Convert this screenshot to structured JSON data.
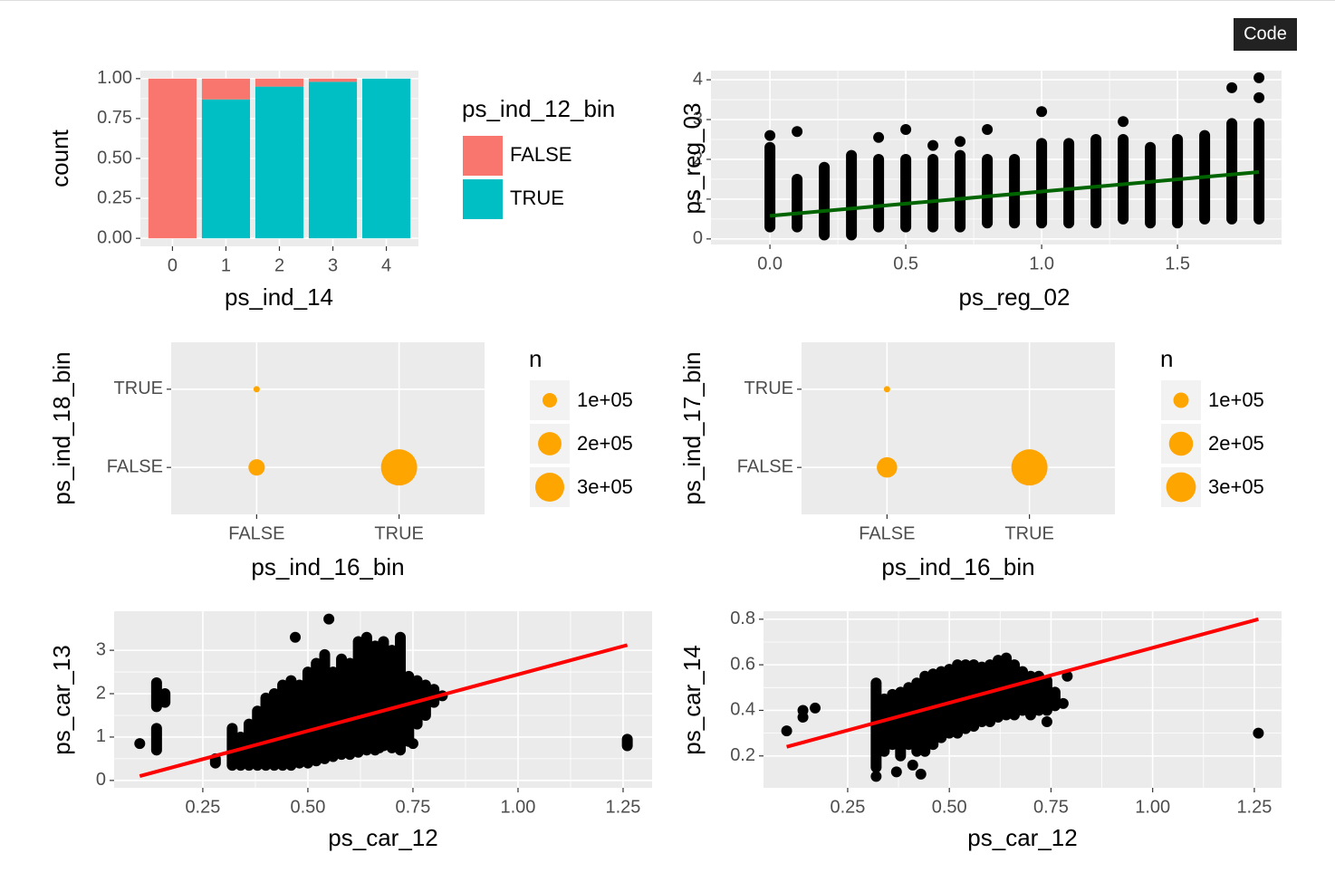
{
  "code_button": "Code",
  "chart_data": [
    {
      "type": "bar",
      "xlabel": "ps_ind_14",
      "ylabel": "count",
      "legend_title": "ps_ind_12_bin",
      "categories": [
        "0",
        "1",
        "2",
        "3",
        "4"
      ],
      "series": [
        {
          "name": "FALSE",
          "color": "#f8766d",
          "values": [
            1.0,
            0.13,
            0.05,
            0.02,
            0.0
          ]
        },
        {
          "name": "TRUE",
          "color": "#00bfc4",
          "values": [
            0.0,
            0.87,
            0.95,
            0.98,
            1.0
          ]
        }
      ],
      "ylim": [
        -0.05,
        1.05
      ],
      "yticks": [
        {
          "value": 0,
          "label": "0.00"
        },
        {
          "value": 0.25,
          "label": "0.25"
        },
        {
          "value": 0.5,
          "label": "0.50"
        },
        {
          "value": 0.75,
          "label": "0.75"
        },
        {
          "value": 1,
          "label": "1.00"
        }
      ],
      "grid": true
    },
    {
      "type": "scatter",
      "xlabel": "ps_reg_02",
      "ylabel": "ps_reg_03",
      "color": "#000000",
      "xlim": [
        -0.217,
        1.883
      ],
      "ylim": [
        -0.14,
        4.23
      ],
      "xticks": [
        {
          "value": 0,
          "label": "0.0"
        },
        0.5,
        {
          "value": 1,
          "label": "1.0"
        },
        1.5
      ],
      "yticks": [
        0,
        1,
        2,
        3,
        4
      ],
      "columns": {
        "x": [
          0,
          0.1,
          0.2,
          0.3,
          0.4,
          0.5,
          0.6,
          0.7,
          0.8,
          0.9,
          1.0,
          1.1,
          1.2,
          1.3,
          1.4,
          1.5,
          1.6,
          1.7,
          1.8
        ],
        "low": [
          0.3,
          0.3,
          0.1,
          0.1,
          0.3,
          0.3,
          0.3,
          0.3,
          0.4,
          0.4,
          0.4,
          0.4,
          0.4,
          0.5,
          0.4,
          0.4,
          0.5,
          0.5,
          0.5
        ],
        "high": [
          2.3,
          1.5,
          1.8,
          2.1,
          2.0,
          2.0,
          2.0,
          2.1,
          2.0,
          2.0,
          2.4,
          2.4,
          2.5,
          2.5,
          2.3,
          2.5,
          2.6,
          2.9,
          2.9
        ]
      },
      "points": {
        "x": [
          0,
          0.1,
          0.4,
          0.5,
          0.6,
          0.7,
          0.8,
          1.0,
          1.3,
          1.7,
          1.8,
          1.8
        ],
        "y": [
          2.6,
          2.7,
          2.55,
          2.75,
          2.35,
          2.45,
          2.75,
          3.2,
          2.95,
          3.8,
          3.55,
          4.05
        ]
      },
      "fit": {
        "color": "#006400",
        "x": [
          0,
          1.8
        ],
        "y": [
          0.58,
          1.68
        ]
      },
      "grid": true
    },
    {
      "type": "bubble",
      "xlabel": "ps_ind_16_bin",
      "ylabel": "ps_ind_18_bin",
      "color": "#ffa500",
      "legend_title": "n",
      "categories": [
        "FALSE",
        "TRUE"
      ],
      "y_categories": [
        "FALSE",
        "TRUE"
      ],
      "points": [
        {
          "x": "FALSE",
          "y": "TRUE",
          "n": 70000
        },
        {
          "x": "FALSE",
          "y": "FALSE",
          "n": 115000
        },
        {
          "x": "TRUE",
          "y": "FALSE",
          "n": 470000
        }
      ],
      "size_legend": [
        {
          "value": 100000,
          "label": "1e+05"
        },
        {
          "value": 200000,
          "label": "2e+05"
        },
        {
          "value": 300000,
          "label": "3e+05"
        }
      ],
      "grid": true
    },
    {
      "type": "bubble",
      "xlabel": "ps_ind_16_bin",
      "ylabel": "ps_ind_17_bin",
      "color": "#ffa500",
      "legend_title": "n",
      "categories": [
        "FALSE",
        "TRUE"
      ],
      "y_categories": [
        "FALSE",
        "TRUE"
      ],
      "points": [
        {
          "x": "FALSE",
          "y": "TRUE",
          "n": 65000
        },
        {
          "x": "FALSE",
          "y": "FALSE",
          "n": 150000
        },
        {
          "x": "TRUE",
          "y": "FALSE",
          "n": 450000
        }
      ],
      "size_legend": [
        {
          "value": 100000,
          "label": "1e+05"
        },
        {
          "value": 200000,
          "label": "2e+05"
        },
        {
          "value": 300000,
          "label": "3e+05"
        }
      ],
      "grid": true
    },
    {
      "type": "scatter",
      "xlabel": "ps_car_12",
      "ylabel": "ps_car_13",
      "color": "#000000",
      "xlim": [
        0.039,
        1.319
      ],
      "ylim": [
        -0.17,
        3.9
      ],
      "xticks": [
        0.25,
        {
          "value": 0.5,
          "label": "0.50"
        },
        0.75,
        {
          "value": 1,
          "label": "1.00"
        },
        1.25
      ],
      "yticks": [
        0,
        1,
        2,
        3
      ],
      "columns": {
        "x": [
          0.14,
          0.14,
          0.16,
          0.28,
          0.32,
          0.34,
          0.36,
          0.38,
          0.4,
          0.42,
          0.44,
          0.46,
          0.48,
          0.5,
          0.52,
          0.54,
          0.56,
          0.58,
          0.6,
          0.62,
          0.64,
          0.66,
          0.68,
          0.7,
          0.72,
          0.74,
          0.76,
          0.78,
          0.8,
          1.26
        ],
        "low": [
          0.7,
          1.7,
          1.8,
          0.4,
          0.35,
          0.35,
          0.35,
          0.35,
          0.35,
          0.35,
          0.35,
          0.35,
          0.4,
          0.4,
          0.45,
          0.5,
          0.55,
          0.6,
          0.6,
          0.65,
          0.7,
          0.7,
          0.8,
          0.75,
          0.7,
          0.9,
          1.3,
          1.5,
          1.8,
          0.8
        ],
        "high": [
          1.2,
          2.25,
          2.0,
          0.5,
          1.2,
          1.0,
          1.3,
          1.6,
          1.9,
          2.0,
          2.2,
          2.3,
          2.2,
          2.5,
          2.7,
          2.9,
          2.5,
          2.8,
          2.7,
          3.2,
          3.3,
          3.1,
          3.2,
          3.0,
          3.3,
          2.4,
          2.3,
          2.2,
          2.1,
          0.95
        ]
      },
      "points": {
        "x": [
          0.1,
          0.55,
          0.47,
          0.71,
          0.67,
          0.75,
          0.82
        ],
        "y": [
          0.85,
          3.72,
          3.3,
          0.8,
          0.75,
          0.85,
          1.95
        ]
      },
      "fit": {
        "color": "#ff0000",
        "x": [
          0.1,
          1.26
        ],
        "y": [
          0.1,
          3.12
        ]
      },
      "grid": true
    },
    {
      "type": "scatter",
      "xlabel": "ps_car_12",
      "ylabel": "ps_car_14",
      "color": "#000000",
      "xlim": [
        0.043,
        1.317
      ],
      "ylim": [
        0.06,
        0.835
      ],
      "xticks": [
        0.25,
        {
          "value": 0.5,
          "label": "0.50"
        },
        0.75,
        {
          "value": 1,
          "label": "1.00"
        },
        1.25
      ],
      "yticks": [
        0.2,
        0.4,
        0.6,
        0.8
      ],
      "columns": {
        "x": [
          0.32,
          0.34,
          0.36,
          0.38,
          0.4,
          0.42,
          0.44,
          0.46,
          0.48,
          0.5,
          0.52,
          0.54,
          0.56,
          0.58,
          0.6,
          0.62,
          0.64,
          0.66,
          0.68,
          0.7,
          0.72,
          0.74,
          0.76
        ],
        "low": [
          0.15,
          0.22,
          0.25,
          0.2,
          0.25,
          0.22,
          0.22,
          0.25,
          0.28,
          0.3,
          0.3,
          0.32,
          0.33,
          0.35,
          0.35,
          0.37,
          0.38,
          0.38,
          0.4,
          0.38,
          0.4,
          0.4,
          0.42
        ],
        "high": [
          0.52,
          0.45,
          0.47,
          0.48,
          0.5,
          0.52,
          0.55,
          0.56,
          0.57,
          0.58,
          0.6,
          0.6,
          0.6,
          0.59,
          0.6,
          0.62,
          0.63,
          0.6,
          0.57,
          0.55,
          0.55,
          0.53,
          0.48
        ]
      },
      "points": {
        "x": [
          0.1,
          0.14,
          0.14,
          0.17,
          0.32,
          0.37,
          0.43,
          0.41,
          0.78,
          0.79,
          0.74,
          1.26
        ],
        "y": [
          0.31,
          0.37,
          0.4,
          0.41,
          0.11,
          0.13,
          0.12,
          0.16,
          0.43,
          0.55,
          0.35,
          0.3
        ]
      },
      "fit": {
        "color": "#ff0000",
        "x": [
          0.1,
          1.26
        ],
        "y": [
          0.24,
          0.8
        ]
      },
      "grid": true
    }
  ]
}
